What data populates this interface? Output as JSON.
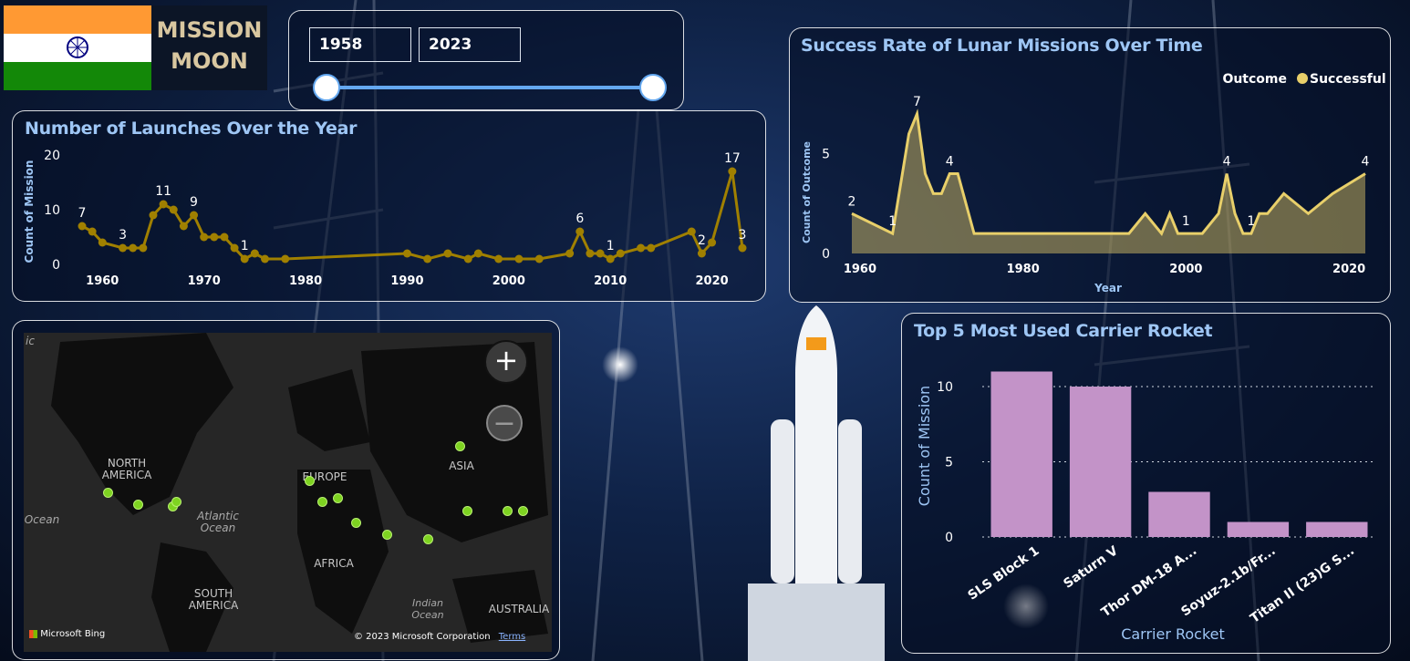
{
  "brand": {
    "title_line1": "MISSION",
    "title_line2": "MOON"
  },
  "year_slicer": {
    "start": "1958",
    "end": "2023"
  },
  "launches_panel": {
    "title": "Number of Launches Over the Year",
    "ylabel": "Count of Mission",
    "yticks": [
      "20",
      "10",
      "0"
    ],
    "xticks": [
      "1960",
      "1970",
      "1980",
      "1990",
      "2000",
      "2010",
      "2020"
    ],
    "color": "#a08000"
  },
  "success_panel": {
    "title": "Success Rate of Lunar Missions Over Time",
    "legend_title": "Outcome",
    "legend_item": "Successful",
    "ylabel": "Count of Outcome",
    "xlabel": "Year",
    "yticks": [
      "5",
      "0"
    ],
    "xticks": [
      "1960",
      "1980",
      "2000",
      "2020"
    ],
    "color": "#e8cf6a"
  },
  "rocket_panel": {
    "title": "Top 5 Most Used Carrier Rocket",
    "ylabel": "Count of Mission",
    "xlabel": "Carrier Rocket",
    "yticks": [
      "10",
      "5",
      "0"
    ],
    "color": "#c393c8"
  },
  "map": {
    "attribution": "Microsoft Bing",
    "copyright": "© 2023 Microsoft Corporation",
    "terms": "Terms",
    "zoom_in": "+",
    "zoom_out": "−",
    "labels": {
      "na": "NORTH AMERICA",
      "eu": "EUROPE",
      "asia": "ASIA",
      "africa": "AFRICA",
      "sa": "SOUTH AMERICA",
      "au": "AUSTRALIA",
      "atlantic": "Atlantic Ocean",
      "indian": "Indian Ocean",
      "ocean_left": "Ocean",
      "edge": "ic"
    }
  },
  "chart_data": [
    {
      "type": "line",
      "title": "Number of Launches Over the Year",
      "xlabel": "",
      "ylabel": "Count of Mission",
      "ylim": [
        0,
        20
      ],
      "xlim": [
        1958,
        2023
      ],
      "series": [
        {
          "x": [
            1958,
            1959,
            1960,
            1962,
            1963,
            1964,
            1965,
            1966,
            1967,
            1968,
            1969,
            1970,
            1971,
            1972,
            1973,
            1974,
            1975,
            1976,
            1978,
            1990,
            1992,
            1994,
            1996,
            1997,
            1999,
            2001,
            2003,
            2006,
            2007,
            2008,
            2009,
            2010,
            2011,
            2013,
            2014,
            2018,
            2019,
            2020,
            2022,
            2023
          ],
          "y": [
            7,
            6,
            4,
            3,
            3,
            3,
            9,
            11,
            10,
            7,
            9,
            5,
            5,
            5,
            3,
            1,
            2,
            1,
            1,
            2,
            1,
            2,
            1,
            2,
            1,
            1,
            1,
            2,
            6,
            2,
            2,
            1,
            2,
            3,
            3,
            6,
            2,
            4,
            17,
            3
          ]
        }
      ],
      "data_labels": [
        {
          "x": 1958,
          "text": "7"
        },
        {
          "x": 1962,
          "text": "3"
        },
        {
          "x": 1966,
          "text": "11"
        },
        {
          "x": 1969,
          "text": "9"
        },
        {
          "x": 1974,
          "text": "1"
        },
        {
          "x": 2007,
          "text": "6"
        },
        {
          "x": 2010,
          "text": "1"
        },
        {
          "x": 2019,
          "text": "2"
        },
        {
          "x": 2022,
          "text": "17"
        },
        {
          "x": 2023,
          "text": "3"
        }
      ]
    },
    {
      "type": "area",
      "title": "Success Rate of Lunar Missions Over Time",
      "xlabel": "Year",
      "ylabel": "Count of Outcome",
      "legend": {
        "title": "Outcome",
        "position": "top-right"
      },
      "ylim": [
        0,
        8
      ],
      "xlim": [
        1959,
        2022
      ],
      "series": [
        {
          "name": "Successful",
          "x": [
            1959,
            1964,
            1966,
            1967,
            1968,
            1969,
            1970,
            1971,
            1972,
            1974,
            1975,
            1985,
            1993,
            1995,
            1997,
            1998,
            1999,
            2000,
            2002,
            2004,
            2005,
            2006,
            2007,
            2008,
            2009,
            2010,
            2012,
            2015,
            2018,
            2022
          ],
          "y": [
            2,
            1,
            6,
            7,
            4,
            3,
            3,
            4,
            4,
            1,
            1,
            1,
            1,
            2,
            1,
            2,
            1,
            1,
            1,
            2,
            4,
            2,
            1,
            1,
            2,
            2,
            3,
            2,
            3,
            4
          ]
        }
      ],
      "data_labels": [
        {
          "x": 1959,
          "text": "2"
        },
        {
          "x": 1964,
          "text": "1"
        },
        {
          "x": 1967,
          "text": "7"
        },
        {
          "x": 1971,
          "text": "4"
        },
        {
          "x": 2000,
          "text": "1"
        },
        {
          "x": 2005,
          "text": "4"
        },
        {
          "x": 2008,
          "text": "1"
        },
        {
          "x": 2022,
          "text": "4"
        }
      ]
    },
    {
      "type": "bar",
      "title": "Top 5 Most Used Carrier Rocket",
      "xlabel": "Carrier Rocket",
      "ylabel": "Count of Mission",
      "ylim": [
        0,
        12
      ],
      "categories": [
        "SLS Block 1",
        "Saturn V",
        "Thor DM-18 A...",
        "Soyuz-2.1b/Fr...",
        "Titan II (23)G S..."
      ],
      "values": [
        11,
        10,
        3,
        1,
        1
      ]
    }
  ]
}
